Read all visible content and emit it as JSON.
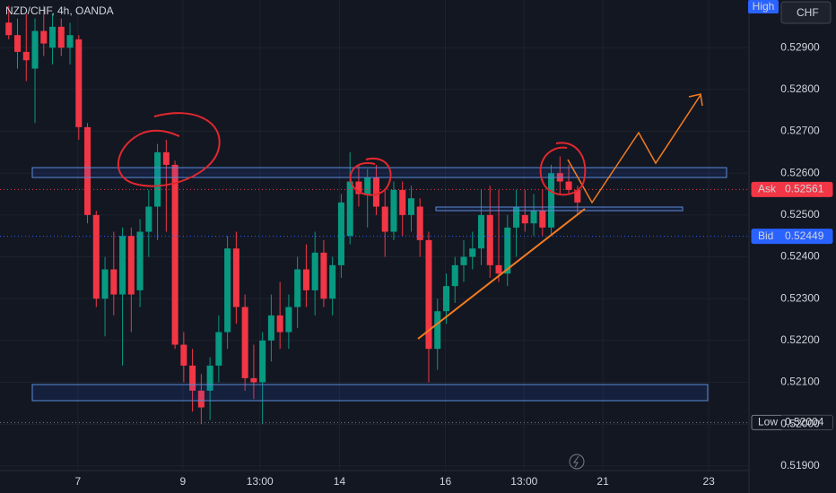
{
  "chart_data": {
    "type": "candlestick",
    "title": "NZD/CHF, 4h, OANDA",
    "currency": "CHF",
    "high_label": "High",
    "open": [
      0.5296,
      0.5293,
      0.5289,
      0.5285,
      0.5294,
      0.529,
      0.5295,
      0.529,
      0.5292,
      0.5271,
      0.525,
      0.523,
      0.5237,
      0.5231,
      0.5245,
      0.5232,
      0.5246,
      0.5252,
      0.5265,
      0.5262,
      0.5219,
      0.5214,
      0.5208,
      0.5208,
      0.5214,
      0.5222,
      0.5242,
      0.5228,
      0.5211,
      0.521,
      0.522,
      0.5226,
      0.5222,
      0.5228,
      0.5237,
      0.5232,
      0.5241,
      0.523,
      0.5238,
      0.5245,
      0.5258,
      0.5255,
      0.5259,
      0.5252,
      0.5246,
      0.5256,
      0.525,
      0.5252,
      0.5244,
      0.5218,
      0.5227,
      0.5233,
      0.5238,
      0.524,
      0.5242,
      0.525,
      0.5238,
      0.5236,
      0.5247,
      0.525,
      0.5248,
      0.5251,
      0.5247,
      0.526,
      0.5258,
      0.5256
    ],
    "high": [
      0.53,
      0.5297,
      0.5298,
      0.5297,
      0.53,
      0.5298,
      0.5297,
      0.5296,
      0.5293,
      0.5272,
      0.5251,
      0.524,
      0.5246,
      0.5247,
      0.5247,
      0.5249,
      0.5256,
      0.5267,
      0.5268,
      0.5263,
      0.5222,
      0.5218,
      0.5212,
      0.5216,
      0.5226,
      0.5245,
      0.5246,
      0.5231,
      0.5219,
      0.5222,
      0.5231,
      0.5234,
      0.5231,
      0.524,
      0.5243,
      0.5246,
      0.5244,
      0.524,
      0.5255,
      0.5265,
      0.5262,
      0.5261,
      0.5262,
      0.5256,
      0.5258,
      0.5258,
      0.5257,
      0.5254,
      0.5246,
      0.523,
      0.5236,
      0.524,
      0.5244,
      0.5246,
      0.5256,
      0.5257,
      0.5256,
      0.525,
      0.5256,
      0.5256,
      0.5255,
      0.5256,
      0.5262,
      0.5264,
      0.5262,
      0.5257
    ],
    "low": [
      0.5292,
      0.5285,
      0.5282,
      0.5272,
      0.5288,
      0.5286,
      0.5288,
      0.5286,
      0.5268,
      0.5248,
      0.5228,
      0.5221,
      0.5226,
      0.5214,
      0.5222,
      0.5228,
      0.524,
      0.5244,
      0.5246,
      0.5218,
      0.521,
      0.5203,
      0.52,
      0.5201,
      0.521,
      0.5218,
      0.5224,
      0.5208,
      0.5206,
      0.52,
      0.5215,
      0.5218,
      0.5218,
      0.5223,
      0.5228,
      0.5226,
      0.5228,
      0.5226,
      0.5235,
      0.5243,
      0.5252,
      0.5247,
      0.525,
      0.524,
      0.5244,
      0.5245,
      0.5246,
      0.524,
      0.521,
      0.5213,
      0.5224,
      0.5229,
      0.5234,
      0.5237,
      0.5238,
      0.5235,
      0.5234,
      0.5233,
      0.524,
      0.5246,
      0.5245,
      0.5245,
      0.5245,
      0.5255,
      0.5255,
      0.525
    ],
    "close": [
      0.5293,
      0.5289,
      0.5287,
      0.5294,
      0.5291,
      0.5295,
      0.529,
      0.5293,
      0.5271,
      0.525,
      0.523,
      0.5237,
      0.5231,
      0.5245,
      0.5231,
      0.5246,
      0.5252,
      0.5265,
      0.5262,
      0.5219,
      0.5214,
      0.5208,
      0.5204,
      0.5214,
      0.5222,
      0.5242,
      0.5228,
      0.5211,
      0.521,
      0.522,
      0.5226,
      0.5222,
      0.5228,
      0.5237,
      0.5232,
      0.5241,
      0.523,
      0.5238,
      0.5253,
      0.5258,
      0.5255,
      0.5259,
      0.5252,
      0.5246,
      0.5256,
      0.525,
      0.5254,
      0.5244,
      0.5218,
      0.5227,
      0.5233,
      0.5238,
      0.524,
      0.5242,
      0.525,
      0.5238,
      0.5236,
      0.5247,
      0.5252,
      0.5248,
      0.5251,
      0.5247,
      0.526,
      0.5258,
      0.5256,
      0.5253
    ],
    "up_color": "#089981",
    "down_color": "#f23645",
    "xlim": [
      -1,
      84.6
    ],
    "xticks": [
      {
        "value": 7.9,
        "label": "7"
      },
      {
        "value": 19.9,
        "label": "9"
      },
      {
        "value": 28.7,
        "label": "13:00"
      },
      {
        "value": 37.8,
        "label": "14"
      },
      {
        "value": 49.9,
        "label": "16"
      },
      {
        "value": 58.9,
        "label": "13:00"
      },
      {
        "value": 67.9,
        "label": "21"
      },
      {
        "value": 80.0,
        "label": "23"
      }
    ],
    "ylim": [
      0.51889,
      0.53014
    ],
    "yticks": [
      {
        "value": 0.519,
        "label": "0.51900"
      },
      {
        "value": 0.52,
        "label": "0.52000"
      },
      {
        "value": 0.521,
        "label": "0.52100"
      },
      {
        "value": 0.522,
        "label": "0.52200"
      },
      {
        "value": 0.523,
        "label": "0.52300"
      },
      {
        "value": 0.524,
        "label": "0.52400"
      },
      {
        "value": 0.525,
        "label": "0.52500"
      },
      {
        "value": 0.526,
        "label": "0.52600"
      },
      {
        "value": 0.527,
        "label": "0.52700"
      },
      {
        "value": 0.528,
        "label": "0.52800"
      },
      {
        "value": 0.529,
        "label": "0.52900"
      }
    ],
    "price_tags": [
      {
        "name": "Ask",
        "value": 0.52561,
        "color": "#f23645"
      },
      {
        "name": "Bid",
        "value": 0.52449,
        "color": "#2962ff"
      },
      {
        "name": "Low",
        "value": 0.52004,
        "color": "#131722"
      }
    ]
  }
}
